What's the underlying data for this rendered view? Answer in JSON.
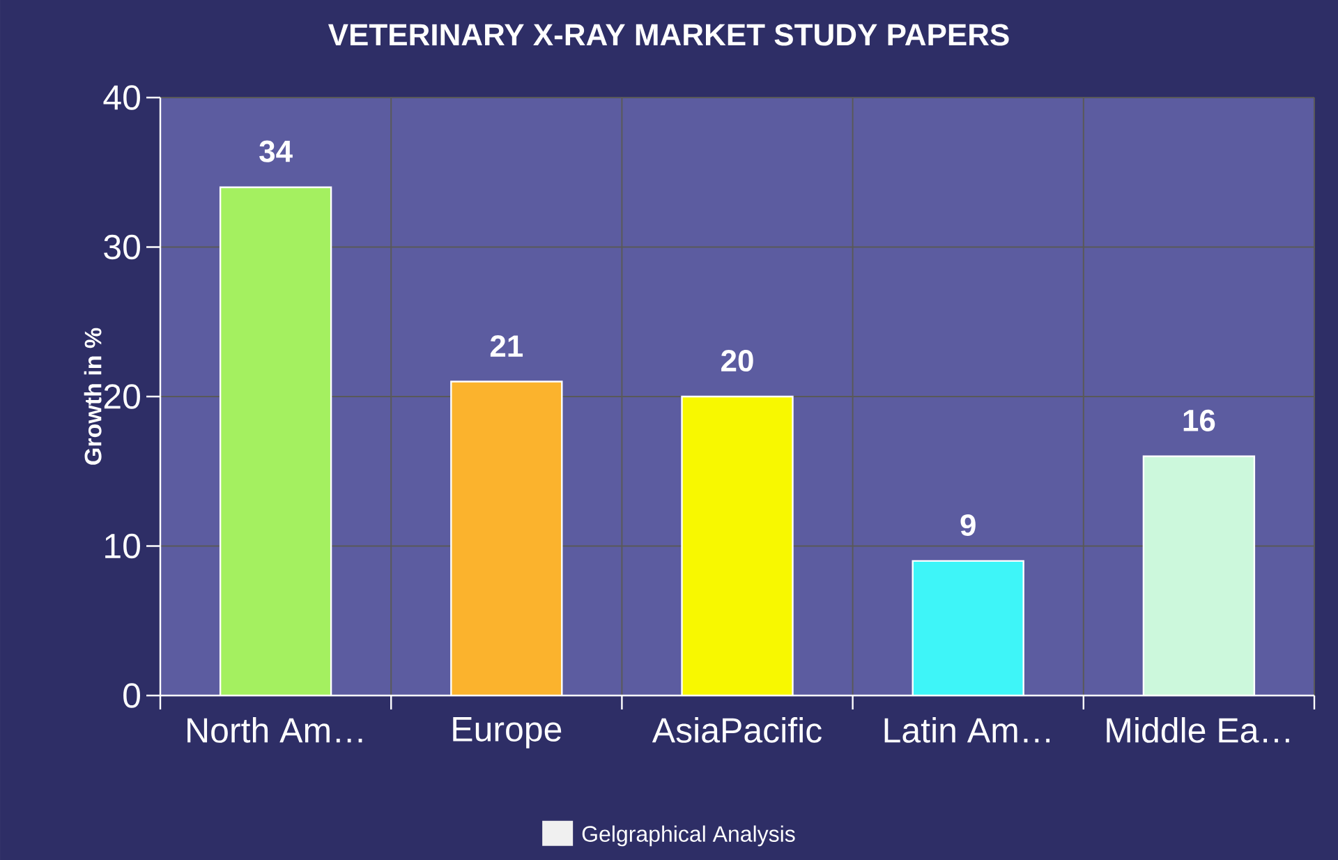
{
  "chart_data": {
    "type": "bar",
    "title": "VETERINARY X-RAY MARKET STUDY PAPERS",
    "ylabel": "Growth in %",
    "categories": [
      "North Am…",
      "Europe",
      "AsiaPacific",
      "Latin Am…",
      "Middle Ea…"
    ],
    "series": [
      {
        "name": "Gelgraphical Analysis",
        "color": "#f0f0f0",
        "values": [
          34,
          21,
          20,
          9,
          16
        ],
        "colors": [
          "#a4f060",
          "#fbb32d",
          "#f8f800",
          "#3ef5f8",
          "#ccf8dc"
        ]
      }
    ],
    "ylim": [
      0,
      40
    ],
    "yticks": [
      0,
      10,
      20,
      30,
      40
    ],
    "grid": true,
    "legend": "bottom",
    "data_labels": true
  }
}
